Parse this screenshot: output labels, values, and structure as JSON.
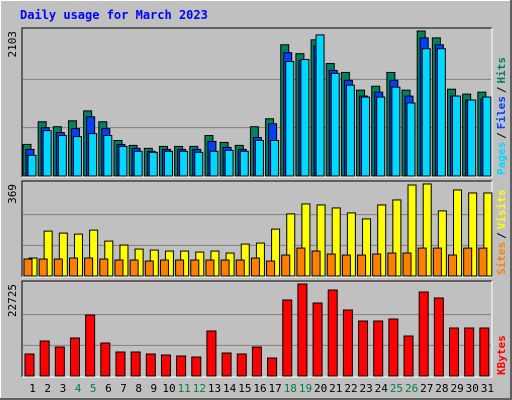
{
  "title": "Daily usage for March 2023",
  "legend_separator": "/",
  "highlight_categories": [
    "4",
    "5",
    "11",
    "12",
    "18",
    "19",
    "25",
    "26"
  ],
  "highlight_color": "#008040",
  "chart_data": [
    {
      "type": "bar",
      "categories": [
        "1",
        "2",
        "3",
        "4",
        "5",
        "6",
        "7",
        "8",
        "9",
        "10",
        "11",
        "12",
        "13",
        "14",
        "15",
        "16",
        "17",
        "18",
        "19",
        "20",
        "21",
        "22",
        "23",
        "24",
        "25",
        "26",
        "27",
        "28",
        "29",
        "30",
        "31"
      ],
      "ylim": [
        0,
        2103
      ],
      "yticks": [
        2103
      ],
      "series": [
        {
          "name": "Hits",
          "color": "#008060",
          "values": [
            458,
            787,
            715,
            801,
            944,
            787,
            515,
            444,
            401,
            429,
            429,
            429,
            587,
            487,
            444,
            715,
            830,
            1903,
            1774,
            1975,
            1631,
            1502,
            1245,
            1302,
            1502,
            1245,
            2103,
            2003,
            1259,
            1188,
            1216
          ]
        },
        {
          "name": "Files",
          "color": "#0040ff",
          "values": [
            386,
            701,
            630,
            687,
            859,
            687,
            458,
            401,
            358,
            386,
            386,
            386,
            501,
            415,
            386,
            558,
            758,
            1789,
            1674,
            1889,
            1531,
            1388,
            1159,
            1216,
            1388,
            1159,
            2003,
            1903,
            1159,
            1102,
            1116
          ]
        },
        {
          "name": "Pages",
          "color": "#00d8ff",
          "values": [
            300,
            658,
            587,
            572,
            615,
            587,
            429,
            358,
            343,
            358,
            358,
            343,
            358,
            372,
            358,
            515,
            515,
            1660,
            1689,
            2046,
            1488,
            1317,
            1145,
            1145,
            1288,
            1059,
            1846,
            1846,
            1159,
            1102,
            1145
          ]
        }
      ]
    },
    {
      "type": "bar",
      "categories": [
        "1",
        "2",
        "3",
        "4",
        "5",
        "6",
        "7",
        "8",
        "9",
        "10",
        "11",
        "12",
        "13",
        "14",
        "15",
        "16",
        "17",
        "18",
        "19",
        "20",
        "21",
        "22",
        "23",
        "24",
        "25",
        "26",
        "27",
        "28",
        "29",
        "30",
        "31"
      ],
      "ylim": [
        0,
        369
      ],
      "yticks": [
        369
      ],
      "series": [
        {
          "name": "Visits",
          "color": "#ffff00",
          "values": [
            72,
            180,
            172,
            168,
            184,
            140,
            124,
            108,
            104,
            100,
            100,
            96,
            100,
            92,
            128,
            132,
            188,
            249,
            289,
            285,
            273,
            253,
            229,
            285,
            305,
            365,
            369,
            261,
            345,
            333,
            333
          ]
        },
        {
          "name": "Sites",
          "color": "#ff8000",
          "values": [
            68,
            68,
            68,
            72,
            72,
            68,
            64,
            64,
            60,
            64,
            64,
            64,
            64,
            64,
            64,
            72,
            60,
            84,
            112,
            100,
            88,
            84,
            84,
            88,
            92,
            92,
            112,
            112,
            84,
            112,
            112
          ]
        }
      ]
    },
    {
      "type": "bar",
      "categories": [
        "1",
        "2",
        "3",
        "4",
        "5",
        "6",
        "7",
        "8",
        "9",
        "10",
        "11",
        "12",
        "13",
        "14",
        "15",
        "16",
        "17",
        "18",
        "19",
        "20",
        "21",
        "22",
        "23",
        "24",
        "25",
        "26",
        "27",
        "28",
        "29",
        "30",
        "31"
      ],
      "ylim": [
        0,
        22725
      ],
      "yticks": [
        22725
      ],
      "series": [
        {
          "name": "KBytes",
          "color": "#ff0000",
          "values": [
            5434,
            8645,
            7163,
            9386,
            15067,
            8151,
            5928,
            5928,
            5434,
            5187,
            4940,
            4693,
            11115,
            5681,
            5434,
            7163,
            4446,
            18773,
            22725,
            18031,
            21242,
            16302,
            13585,
            13585,
            14079,
            9880,
            20748,
            19266,
            11856,
            11856,
            11856
          ]
        }
      ]
    }
  ]
}
